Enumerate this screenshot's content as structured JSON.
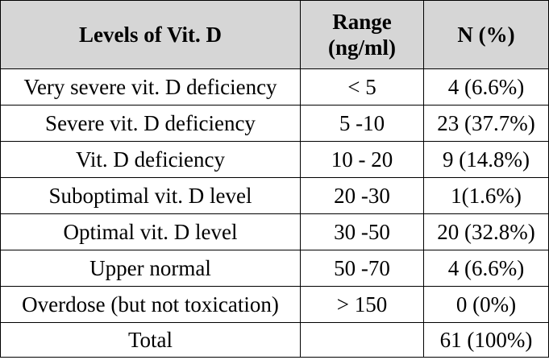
{
  "table": {
    "headers": {
      "level": "Levels of Vit. D",
      "range_line1": "Range",
      "range_line2": "(ng/ml)",
      "n": "N (%)"
    },
    "rows": [
      {
        "level": "Very severe vit. D deficiency",
        "range": "< 5",
        "n": "4 (6.6%)"
      },
      {
        "level": "Severe vit. D deficiency",
        "range": "5 -10",
        "n": "23 (37.7%)"
      },
      {
        "level": "Vit. D deficiency",
        "range": "10 - 20",
        "n": "9 (14.8%)"
      },
      {
        "level": "Suboptimal vit. D level",
        "range": "20 -30",
        "n": "1(1.6%)"
      },
      {
        "level": "Optimal vit. D level",
        "range": "30 -50",
        "n": "20 (32.8%)"
      },
      {
        "level": "Upper normal",
        "range": "50 -70",
        "n": "4 (6.6%)"
      },
      {
        "level": "Overdose (but not toxication)",
        "range": "> 150",
        "n": "0 (0%)"
      },
      {
        "level": "Total",
        "range": "",
        "n": "61 (100%)"
      }
    ]
  }
}
